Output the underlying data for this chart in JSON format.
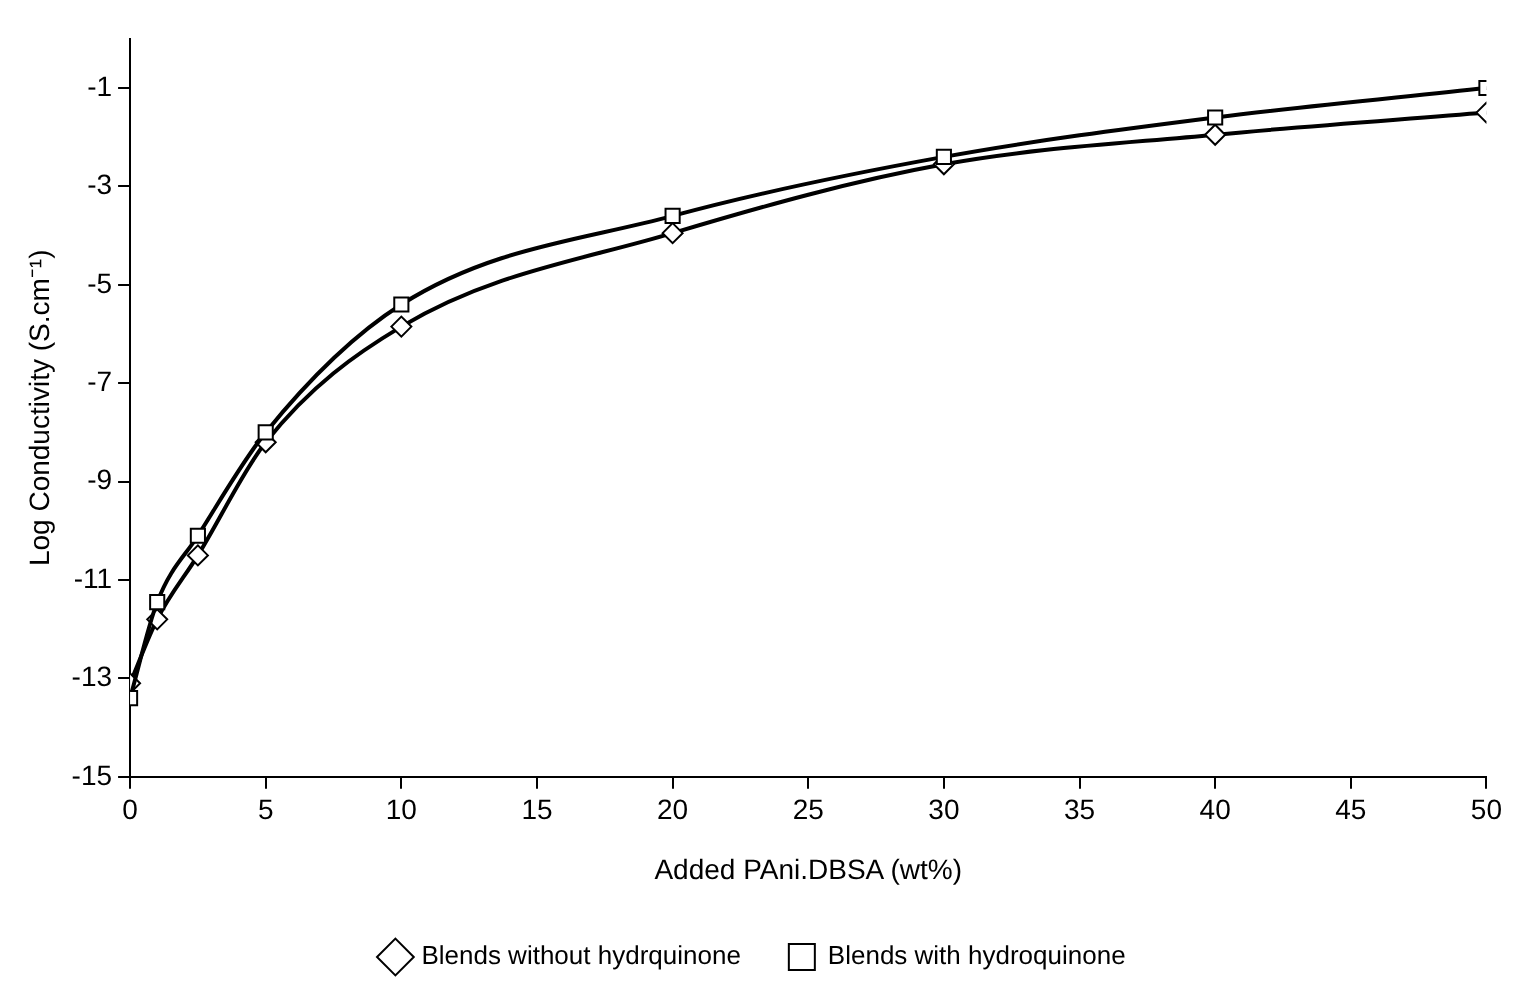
{
  "chart_data": {
    "type": "line",
    "xlabel": "Added PAni.DBSA (wt%)",
    "ylabel": "Log Conductivity (S.cm⁻¹)",
    "x": [
      0,
      1,
      2.5,
      5,
      10,
      20,
      30,
      40,
      50
    ],
    "series": [
      {
        "name": "Blends without hydrquinone",
        "color": "#000000",
        "marker": "diamond",
        "values": [
          -13.1,
          -11.8,
          -10.5,
          -8.2,
          -5.85,
          -3.95,
          -2.55,
          -1.95,
          -1.5
        ]
      },
      {
        "name": "Blends with hydroquinone",
        "color": "#000000",
        "marker": "square",
        "values": [
          -13.4,
          -11.45,
          -10.1,
          -8.0,
          -5.4,
          -3.6,
          -2.4,
          -1.6,
          -1.0
        ]
      }
    ],
    "xlim": [
      0,
      50
    ],
    "xticks": [
      0,
      5,
      10,
      15,
      20,
      25,
      30,
      35,
      40,
      45,
      50
    ],
    "ylim": [
      -15,
      0
    ],
    "yticks": [
      -15,
      -13,
      -11,
      -9,
      -7,
      -5,
      -3,
      -1
    ],
    "grid": false,
    "legend": "bottom",
    "line_style": "solid"
  }
}
